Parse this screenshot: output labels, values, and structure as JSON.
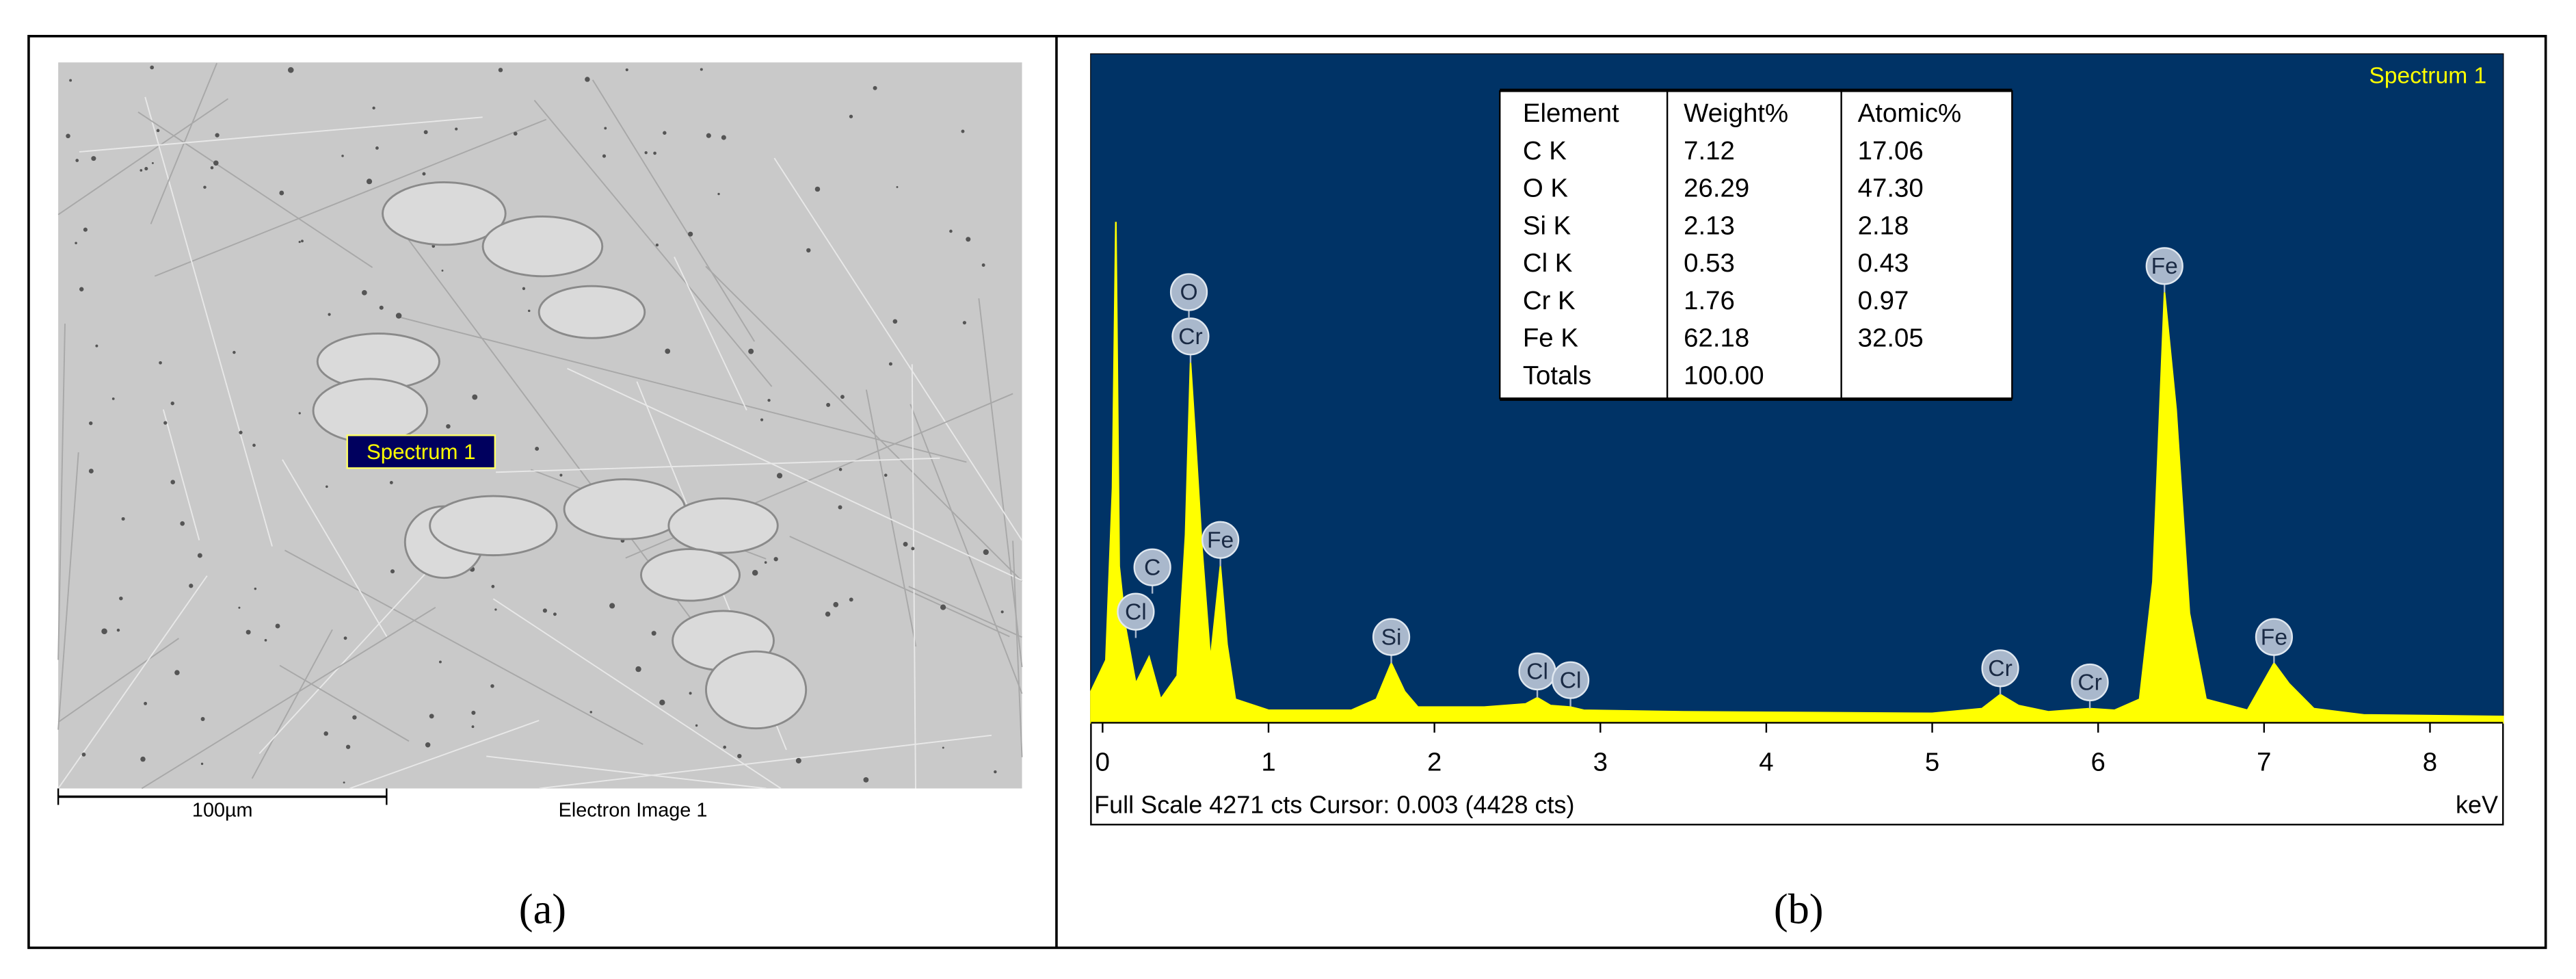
{
  "panel_a": {
    "spectrum_label": "Spectrum 1",
    "scale_bar": "100µm",
    "image_caption": "Electron Image 1"
  },
  "captions": [
    "(a)",
    "(b)"
  ],
  "chart_data": {
    "type": "area",
    "title": "Spectrum 1",
    "color": "#ffff00",
    "background": "#003366",
    "x": [
      -0.07,
      0.02,
      0.06,
      0.08,
      0.1,
      0.14,
      0.2,
      0.28,
      0.35,
      0.45,
      0.5,
      0.53,
      0.56,
      0.6,
      0.65,
      0.71,
      0.75,
      0.8,
      1.0,
      1.5,
      1.65,
      1.74,
      1.82,
      1.9,
      2.3,
      2.55,
      2.62,
      2.7,
      2.82,
      2.9,
      3.5,
      5.0,
      5.3,
      5.41,
      5.52,
      5.7,
      5.95,
      6.1,
      6.25,
      6.33,
      6.4,
      6.47,
      6.55,
      6.65,
      6.9,
      7.06,
      7.15,
      7.3,
      7.6,
      8.44
    ],
    "values": [
      200,
      400,
      1500,
      3200,
      1000,
      600,
      250,
      420,
      150,
      300,
      1200,
      2300,
      1800,
      1100,
      400,
      1000,
      500,
      150,
      80,
      80,
      150,
      380,
      200,
      100,
      100,
      120,
      160,
      110,
      100,
      80,
      70,
      60,
      90,
      180,
      110,
      70,
      90,
      80,
      150,
      900,
      2750,
      2000,
      700,
      150,
      80,
      380,
      250,
      90,
      50,
      40
    ],
    "xlim": [
      -0.07,
      8.44
    ],
    "ylim": [
      0,
      4271
    ],
    "xticks": [
      0,
      1,
      2,
      3,
      4,
      5,
      6,
      7,
      8
    ],
    "x_unit": "keV",
    "footer": "Full Scale 4271 cts Cursor: 0.003  (4428 cts)",
    "annotations": [
      {
        "label": "Cl",
        "x": 0.2
      },
      {
        "label": "C",
        "x": 0.3
      },
      {
        "label": "Cr",
        "x": 0.53
      },
      {
        "label": "O",
        "x": 0.52
      },
      {
        "label": "Fe",
        "x": 0.71
      },
      {
        "label": "Si",
        "x": 1.74
      },
      {
        "label": "Cl",
        "x": 2.62
      },
      {
        "label": "Cl",
        "x": 2.82
      },
      {
        "label": "Cr",
        "x": 5.41
      },
      {
        "label": "Cr",
        "x": 5.95
      },
      {
        "label": "Fe",
        "x": 6.4
      },
      {
        "label": "Fe",
        "x": 7.06
      }
    ],
    "table": {
      "header": [
        "Element",
        "Weight%",
        "Atomic%"
      ],
      "rows": [
        [
          "C K",
          "7.12",
          "17.06"
        ],
        [
          "O K",
          "26.29",
          "47.30"
        ],
        [
          "Si K",
          "2.13",
          "2.18"
        ],
        [
          "Cl K",
          "0.53",
          "0.43"
        ],
        [
          "Cr K",
          "1.76",
          "0.97"
        ],
        [
          "Fe K",
          "62.18",
          "32.05"
        ],
        [
          "Totals",
          "100.00",
          null
        ]
      ]
    }
  }
}
